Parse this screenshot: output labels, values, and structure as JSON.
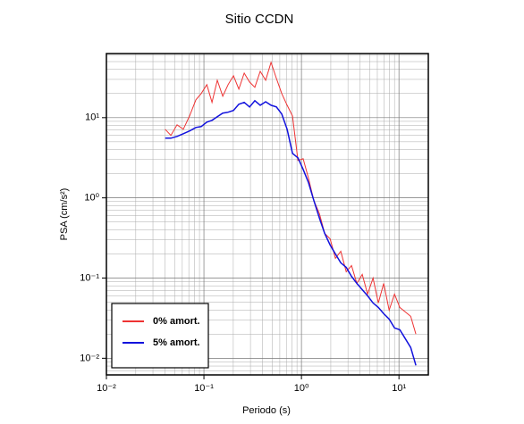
{
  "chart_data": {
    "type": "line",
    "title": "Sitio CCDN",
    "x_label": "Periodo (s)",
    "y_label": "PSA (cm/s²)",
    "x_scale": "log",
    "y_scale": "log",
    "grid": true,
    "minor_grid": true,
    "legend": "lower left",
    "xlim": [
      0.01,
      20
    ],
    "ylim": [
      0.0062,
      63
    ],
    "xticks": [
      {
        "value": 0.01,
        "label": "10⁻²"
      },
      {
        "value": 0.1,
        "label": "10⁻¹"
      },
      {
        "value": 1,
        "label": "10⁰"
      },
      {
        "value": 10,
        "label": "10¹"
      }
    ],
    "yticks": [
      {
        "value": 0.01,
        "label": "10⁻²"
      },
      {
        "value": 0.1,
        "label": "10⁻¹"
      },
      {
        "value": 1,
        "label": "10⁰"
      },
      {
        "value": 10,
        "label": "10¹"
      }
    ],
    "x": [
      0.04,
      0.0458,
      0.053,
      0.0615,
      0.0713,
      0.0827,
      0.0938,
      0.107,
      0.121,
      0.137,
      0.156,
      0.177,
      0.201,
      0.228,
      0.259,
      0.294,
      0.333,
      0.378,
      0.43,
      0.488,
      0.553,
      0.628,
      0.713,
      0.81,
      0.92,
      1.04,
      1.18,
      1.34,
      1.53,
      1.73,
      1.97,
      2.23,
      2.53,
      2.88,
      3.26,
      3.7,
      4.2,
      4.77,
      5.42,
      6.15,
      6.98,
      7.93,
      9.0,
      10.2,
      11.6,
      13.2,
      14.9
    ],
    "series": [
      {
        "name": "0% amort.",
        "color": "#ee3333",
        "values": [
          7.17,
          6.0,
          8.15,
          7.17,
          10.5,
          16.7,
          20.0,
          25.8,
          15.5,
          29.3,
          18.5,
          25.8,
          33.3,
          22.7,
          35.9,
          27.8,
          23.9,
          37.8,
          29.3,
          48.9,
          30.8,
          20.0,
          14.3,
          10.5,
          2.93,
          3.08,
          1.75,
          0.926,
          0.631,
          0.36,
          0.308,
          0.176,
          0.216,
          0.12,
          0.143,
          0.0858,
          0.111,
          0.063,
          0.1,
          0.0489,
          0.0858,
          0.0398,
          0.063,
          0.043,
          0.0379,
          0.0333,
          0.02
        ]
      },
      {
        "name": "5% amort.",
        "color": "#1111dd",
        "values": [
          5.55,
          5.55,
          5.84,
          6.3,
          6.82,
          7.55,
          7.74,
          8.8,
          9.26,
          10.3,
          11.4,
          11.7,
          12.3,
          14.7,
          15.5,
          13.6,
          16.3,
          14.3,
          15.8,
          14.3,
          13.6,
          11.1,
          7.17,
          3.59,
          3.16,
          2.27,
          1.55,
          0.926,
          0.555,
          0.36,
          0.258,
          0.2,
          0.155,
          0.136,
          0.105,
          0.0858,
          0.0717,
          0.06,
          0.0489,
          0.043,
          0.036,
          0.0308,
          0.0239,
          0.0227,
          0.0176,
          0.0136,
          0.00815
        ]
      }
    ]
  }
}
